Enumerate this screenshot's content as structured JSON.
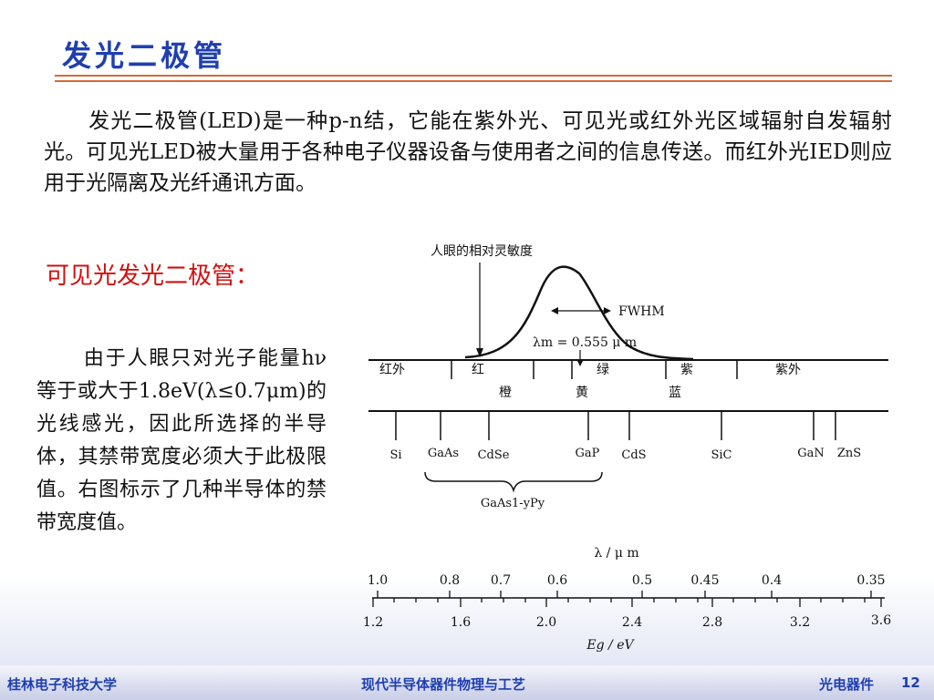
{
  "title": "发光二极管",
  "intro_text": "发光二极管(LED)是一种p-n结，它能在紫外光、可见光或红外光区域辐射自发辐射光。可见光LED被大量用于各种电子仪器设备与使用者之间的信息传送。而红外光IED则应用于光隔离及光纤通讯方面。",
  "subtitle": "可见光发光二极管：",
  "side_text": "由于人眼只对光子能量hν等于或大于1.8eV(λ≤0.7μm)的光线感光，因此所选择的半导体，其禁带宽度必须大于此极限值。右图标示了几种半导体的禁带宽度值。",
  "diagram": {
    "eye_sensitivity_label": "人眼的相对灵敏度",
    "fwhm_label": "FWHM",
    "lambda_m_label": "λm = 0.555 μ m",
    "spectrum_upper": [
      "红外",
      "红",
      "绿",
      "紫",
      "紫外"
    ],
    "spectrum_lower": [
      "橙",
      "黄",
      "蓝"
    ],
    "materials": [
      "Si",
      "GaAs",
      "CdSe",
      "GaP",
      "CdS",
      "SiC",
      "GaN",
      "ZnS"
    ],
    "alloy_label": "GaAs1-yPy",
    "wavelength_axis_label": "λ / μ m",
    "wavelength_ticks": [
      "1.0",
      "0.8",
      "0.7",
      "0.6",
      "0.5",
      "0.45",
      "0.4",
      "0.35"
    ],
    "energy_axis_label": "Eg / eV",
    "energy_ticks": [
      "1.2",
      "1.6",
      "2.0",
      "2.4",
      "2.8",
      "3.2",
      "3.6"
    ]
  },
  "footer": {
    "left": "桂林电子科技大学",
    "center": "现代半导体器件物理与工艺",
    "right": "光电器件",
    "page": "12"
  },
  "colors": {
    "title": "#1f3fb0",
    "subtitle": "#d01010",
    "rule": "#d2693a"
  }
}
